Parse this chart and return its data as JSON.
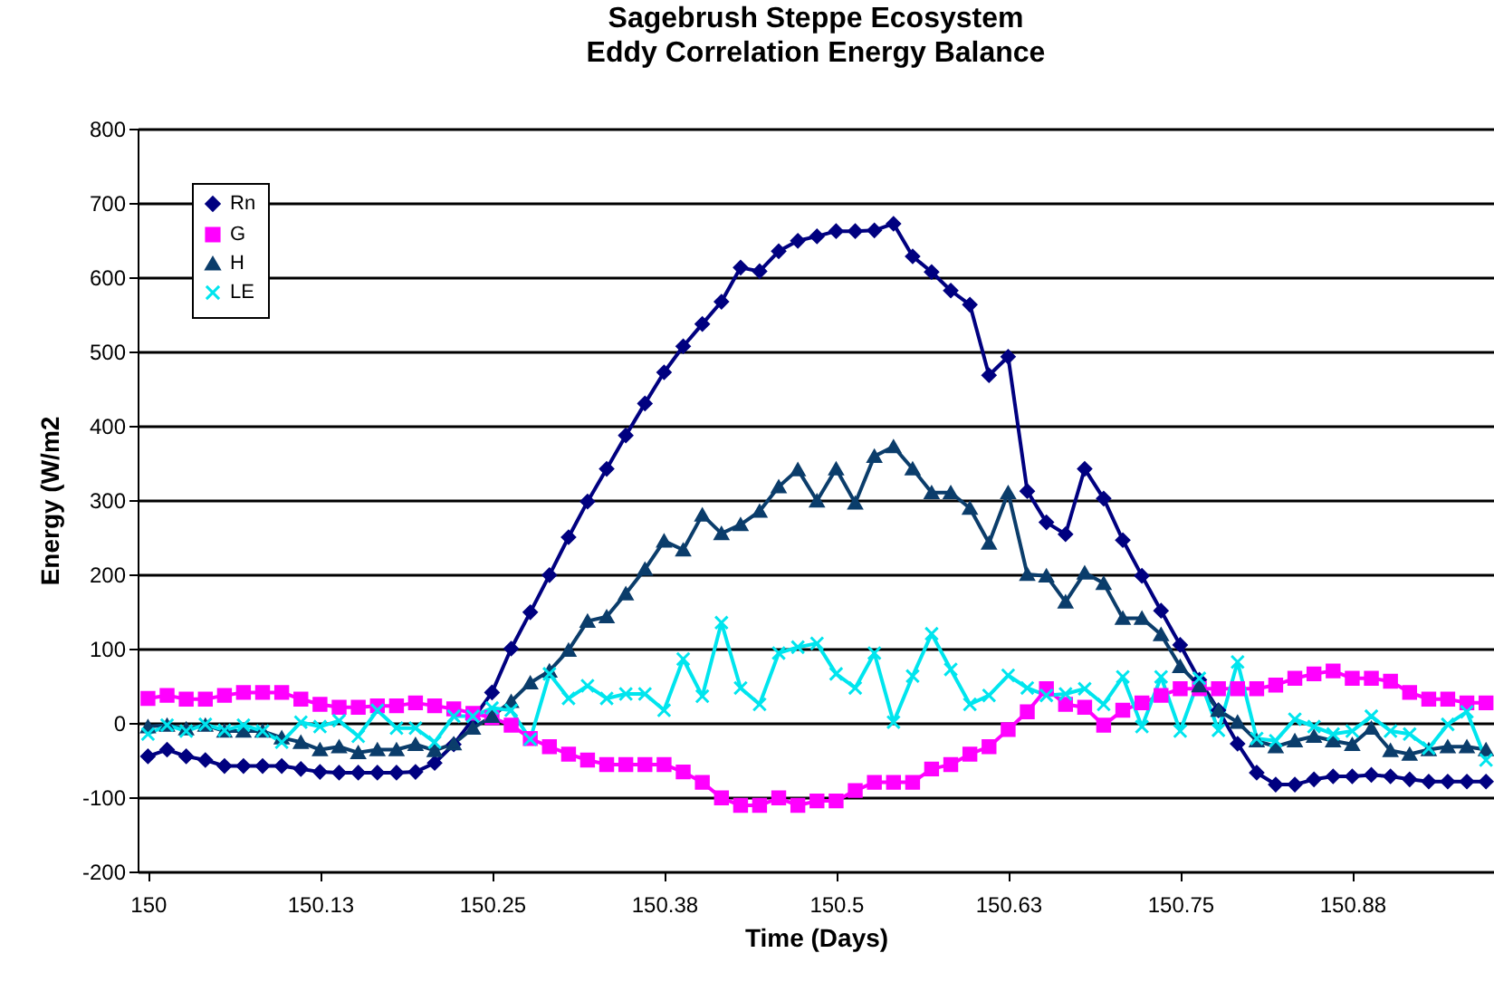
{
  "chart_data": {
    "type": "line",
    "title": "Sagebrush Steppe Ecosystem",
    "subtitle": "Eddy Correlation Energy Balance",
    "xlabel": "Time (Days)",
    "ylabel": "Energy  (W/m2",
    "x": [
      150,
      150.0139,
      150.0278,
      150.0417,
      150.0556,
      150.0694,
      150.0833,
      150.0972,
      150.1111,
      150.125,
      150.1389,
      150.1528,
      150.1667,
      150.1806,
      150.1944,
      150.2083,
      150.2222,
      150.2361,
      150.25,
      150.2639,
      150.2778,
      150.2917,
      150.3056,
      150.3194,
      150.3333,
      150.3472,
      150.3611,
      150.375,
      150.3889,
      150.4028,
      150.4167,
      150.4306,
      150.4444,
      150.4583,
      150.4722,
      150.4861,
      150.5,
      150.5139,
      150.5278,
      150.5417,
      150.5556,
      150.5694,
      150.5833,
      150.5972,
      150.6111,
      150.625,
      150.6389,
      150.6528,
      150.6667,
      150.6806,
      150.6944,
      150.7083,
      150.7222,
      150.7361,
      150.75,
      150.7639,
      150.7778,
      150.7917,
      150.8056,
      150.8194,
      150.8333,
      150.8472,
      150.8611,
      150.875,
      150.8889,
      150.9028,
      150.9167,
      150.9306,
      150.9444,
      150.9583,
      150.9722
    ],
    "series": [
      {
        "name": "Rn",
        "color": "#000080",
        "marker": "diamond",
        "values": [
          -45,
          -36,
          -45,
          -50,
          -58,
          -58,
          -58,
          -58,
          -62,
          -66,
          -67,
          -67,
          -67,
          -67,
          -66,
          -54,
          -29,
          5,
          41,
          100,
          149,
          199,
          250,
          298,
          342,
          387,
          430,
          472,
          507,
          537,
          567,
          613,
          608,
          635,
          649,
          655,
          662,
          662,
          663,
          672,
          628,
          607,
          582,
          563,
          468,
          493,
          312,
          270,
          254,
          342,
          302,
          246,
          198,
          151,
          105,
          58,
          17,
          -28,
          -67,
          -83,
          -83,
          -76,
          -72,
          -72,
          -70,
          -72,
          -76,
          -79,
          -79,
          -79,
          -79
        ]
      },
      {
        "name": "G",
        "color": "#ff00ff",
        "marker": "square",
        "values": [
          33,
          37,
          32,
          32,
          37,
          41,
          41,
          41,
          32,
          25,
          21,
          21,
          23,
          23,
          27,
          23,
          19,
          13,
          7,
          -3,
          -21,
          -32,
          -42,
          -50,
          -56,
          -56,
          -56,
          -56,
          -66,
          -80,
          -101,
          -111,
          -111,
          -101,
          -111,
          -105,
          -105,
          -91,
          -80,
          -80,
          -80,
          -62,
          -56,
          -42,
          -32,
          -9,
          15,
          46,
          25,
          21,
          -3,
          17,
          27,
          37,
          46,
          46,
          46,
          46,
          46,
          51,
          60,
          66,
          70,
          60,
          60,
          56,
          41,
          32,
          32,
          27,
          27
        ]
      },
      {
        "name": "H",
        "color": "#0b3d6b",
        "marker": "triangle",
        "values": [
          -5,
          -3,
          -8,
          -3,
          -11,
          -11,
          -11,
          -20,
          -26,
          -36,
          -32,
          -40,
          -36,
          -36,
          -29,
          -37,
          -28,
          -7,
          9,
          29,
          54,
          70,
          98,
          137,
          143,
          174,
          207,
          245,
          233,
          280,
          255,
          267,
          285,
          318,
          341,
          299,
          342,
          296,
          359,
          372,
          342,
          310,
          310,
          289,
          242,
          310,
          200,
          198,
          163,
          202,
          188,
          141,
          141,
          119,
          76,
          50,
          17,
          1,
          -24,
          -32,
          -24,
          -18,
          -24,
          -29,
          -7,
          -37,
          -42,
          -36,
          -32,
          -32,
          -36
        ]
      },
      {
        "name": "LE",
        "color": "#00e5ee",
        "marker": "cross",
        "values": [
          -15,
          -3,
          -11,
          -2,
          -10,
          -3,
          -11,
          -26,
          1,
          -5,
          3,
          -18,
          17,
          -7,
          -7,
          -26,
          9,
          9,
          20,
          17,
          -22,
          66,
          33,
          50,
          33,
          39,
          39,
          17,
          86,
          36,
          135,
          47,
          25,
          94,
          102,
          107,
          66,
          47,
          94,
          1,
          63,
          120,
          72,
          25,
          37,
          64,
          47,
          37,
          39,
          46,
          25,
          62,
          -5,
          62,
          -11,
          60,
          -10,
          82,
          -21,
          -24,
          5,
          -5,
          -15,
          -11,
          9,
          -11,
          -15,
          -34,
          -2,
          15,
          -50
        ]
      }
    ],
    "xlim": [
      149.9925,
      150.978
    ],
    "xticks": [
      150,
      {
        "value": 150.125,
        "label": "150.13"
      },
      150.25,
      {
        "value": 150.375,
        "label": "150.38"
      },
      150.5,
      {
        "value": 150.625,
        "label": "150.63"
      },
      150.75,
      {
        "value": 150.875,
        "label": "150.88"
      }
    ],
    "ylim": [
      -200,
      800
    ],
    "yticks": [
      -200,
      -100,
      0,
      100,
      200,
      300,
      400,
      500,
      600,
      700,
      800
    ],
    "grid": "y",
    "legend": "top left",
    "line_style": "solid"
  }
}
